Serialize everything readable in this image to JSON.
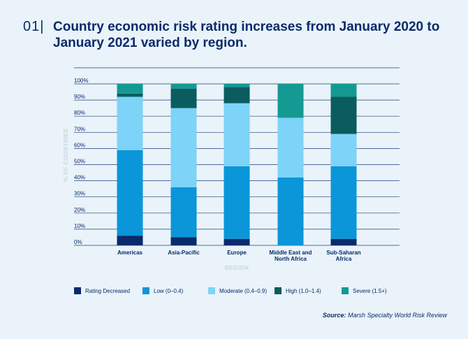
{
  "header": {
    "figure_number": "01|",
    "title": "Country economic risk rating increases from January 2020 to January 2021 varied by region."
  },
  "chart_data": {
    "type": "bar",
    "stacked": true,
    "title": "Country economic risk rating increases from January 2020 to January 2021 varied by region.",
    "xlabel": "REGION",
    "ylabel": "% OF COUNTRIES",
    "ylim": [
      0,
      100
    ],
    "yticks": [
      0,
      10,
      20,
      30,
      40,
      50,
      60,
      70,
      80,
      90,
      100
    ],
    "ytick_labels": [
      "0%",
      "10%",
      "20%",
      "30%",
      "40%",
      "50%",
      "60%",
      "70%",
      "80%",
      "90%",
      "100%"
    ],
    "categories": [
      [
        "Americas"
      ],
      [
        "Asia-Pacific"
      ],
      [
        "Europe"
      ],
      [
        "Middle East and",
        "North Africa"
      ],
      [
        "Sub-Saharan",
        "Africa"
      ]
    ],
    "series": [
      {
        "name": "Rating Decreased",
        "color": "#0a2a6b",
        "values": [
          6,
          5,
          4,
          0,
          4
        ]
      },
      {
        "name": "Low (0–0.4)",
        "color": "#0a96d8",
        "values": [
          53,
          31,
          45,
          42,
          45
        ]
      },
      {
        "name": "Moderate (0.4–0.9)",
        "color": "#7dd3f8",
        "values": [
          33,
          49,
          39,
          37,
          20
        ]
      },
      {
        "name": "High (1.0–1.4)",
        "color": "#0b5c5e",
        "values": [
          2,
          12,
          10,
          0,
          23
        ]
      },
      {
        "name": "Severe (1.5+)",
        "color": "#149a93",
        "values": [
          6,
          3,
          2,
          21,
          8
        ]
      }
    ],
    "legend_position": "bottom",
    "grid": true
  },
  "source": {
    "label": "Source:",
    "text": "Marsh Specialty World Risk Review"
  }
}
